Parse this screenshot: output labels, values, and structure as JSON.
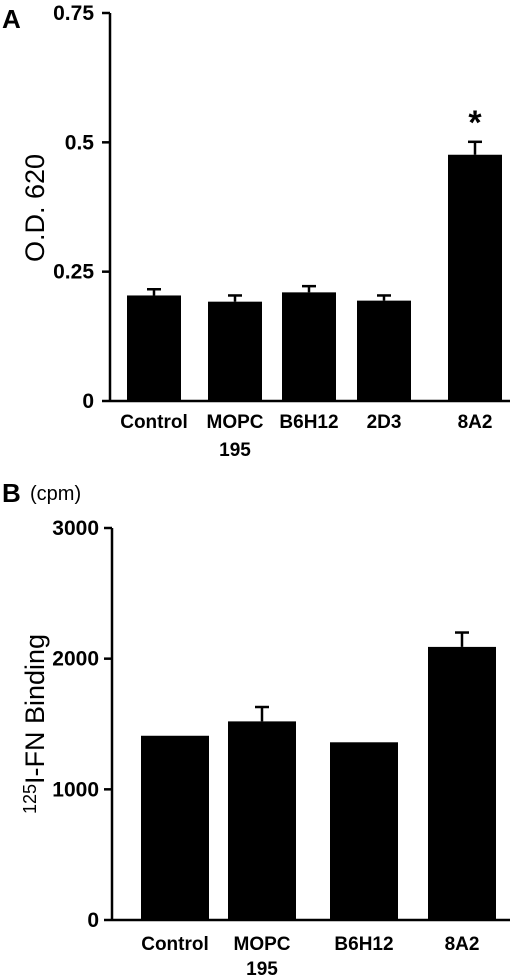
{
  "chart_data": [
    {
      "panel": "A",
      "type": "bar",
      "ylabel": "O.D. 620",
      "ylim": [
        0,
        0.75
      ],
      "yticks": [
        "0",
        "0.25",
        "0.5",
        "0.75"
      ],
      "categories": [
        {
          "line1": "Control",
          "line2": ""
        },
        {
          "line1": "MOPC",
          "line2": "195"
        },
        {
          "line1": "B6H12",
          "line2": ""
        },
        {
          "line1": "2D3",
          "line2": ""
        },
        {
          "line1": "8A2",
          "line2": ""
        }
      ],
      "values": [
        0.204,
        0.192,
        0.21,
        0.194,
        0.476
      ],
      "errors": [
        0.012,
        0.012,
        0.012,
        0.01,
        0.025
      ],
      "annotations": [
        "",
        "",
        "",
        "",
        "*"
      ],
      "bar_color": "#000000"
    },
    {
      "panel": "B",
      "type": "bar",
      "unit": "(cpm)",
      "ylabel_sup": "125",
      "ylabel": "I-FN Binding",
      "ylim": [
        0,
        3000
      ],
      "yticks": [
        "0",
        "1000",
        "2000",
        "3000"
      ],
      "categories": [
        {
          "line1": "Control",
          "line2": ""
        },
        {
          "line1": "MOPC",
          "line2": "195"
        },
        {
          "line1": "B6H12",
          "line2": ""
        },
        {
          "line1": "8A2",
          "line2": ""
        }
      ],
      "values": [
        1410,
        1520,
        1360,
        2090
      ],
      "errors": [
        0,
        110,
        0,
        110
      ],
      "annotations": [
        "",
        "",
        "",
        ""
      ],
      "bar_color": "#000000"
    }
  ]
}
